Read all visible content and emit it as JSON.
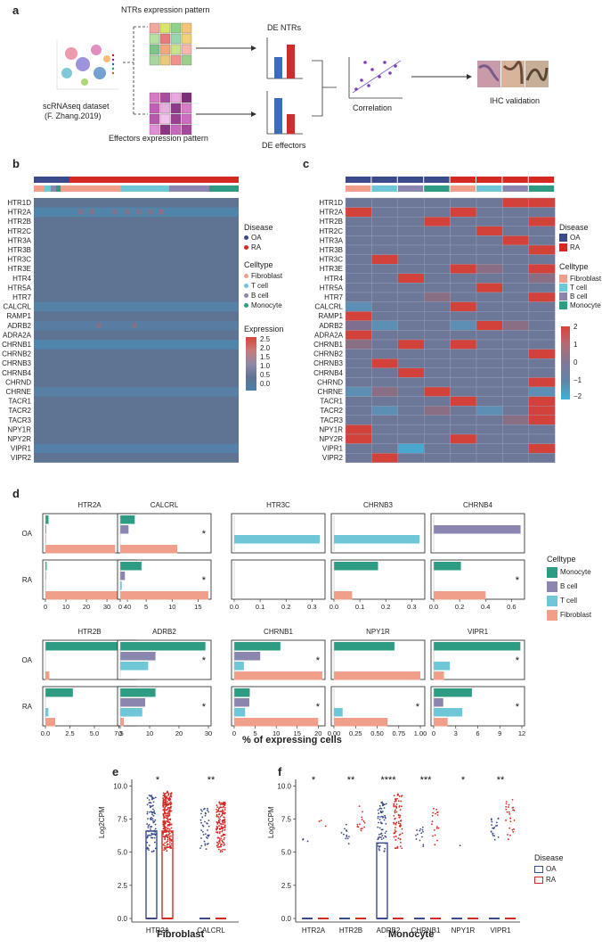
{
  "panel_a": {
    "label": "a",
    "dataset_label_1": "scRNAseq dataset",
    "dataset_label_2": "(F. Zhang.2019)",
    "ntr_pattern": "NTRs expression pattern",
    "eff_pattern": "Effectors expression pattern",
    "de_ntrs": "DE NTRs",
    "de_effectors": "DE effectors",
    "correlation": "Correlation",
    "ihc": "IHC validation"
  },
  "panel_b": {
    "label": "b",
    "genes": [
      "HTR1D",
      "HTR2A",
      "HTR2B",
      "HTR2C",
      "HTR3A",
      "HTR3B",
      "HTR3C",
      "HTR3E",
      "HTR4",
      "HTR5A",
      "HTR7",
      "CALCRL",
      "RAMP1",
      "ADRB2",
      "ADRA2A",
      "CHRNB1",
      "CHRNB2",
      "CHRNB3",
      "CHRNB4",
      "CHRND",
      "CHRNE",
      "TACR1",
      "TACR2",
      "TACR3",
      "NPY1R",
      "NPY2R",
      "VIPR1",
      "VIPR2"
    ],
    "legend": {
      "disease_title": "Disease",
      "disease": [
        "OA",
        "RA"
      ],
      "celltype_title": "Celltype",
      "celltypes": [
        "Fibroblast",
        "T cell",
        "B cell",
        "Monocyte"
      ],
      "expression_title": "Expression",
      "expression_ticks": [
        "2.5",
        "2.0",
        "1.5",
        "1.0",
        "0.5",
        "0.0"
      ]
    }
  },
  "panel_c": {
    "label": "c",
    "legend": {
      "disease_title": "Disease",
      "disease": [
        "OA",
        "RA"
      ],
      "celltype_title": "Celltype",
      "celltypes": [
        "Fibroblast",
        "T cell",
        "B cell",
        "Monocyte"
      ],
      "scale_ticks": [
        "2",
        "1",
        "0",
        "−1",
        "−2"
      ]
    }
  },
  "panel_d": {
    "label": "d",
    "xlabel": "% of expressing cells",
    "legend_title": "Celltype",
    "legend_items": [
      "Monocyte",
      "B cell",
      "T cell",
      "Fibroblast"
    ],
    "row_labels": [
      "OA",
      "RA"
    ]
  },
  "panel_e": {
    "label": "e",
    "ylabel": "Log2CPM",
    "xlabel": "Fibroblast",
    "genes": [
      "HTR2A",
      "CALCRL"
    ],
    "sig": [
      "*",
      "**"
    ],
    "yticks": [
      "10.0",
      "7.5",
      "5.0",
      "2.5",
      "0.0"
    ]
  },
  "panel_f": {
    "label": "f",
    "ylabel": "Log2CPM",
    "xlabel": "Monocyte",
    "genes": [
      "HTR2A",
      "HTR2B",
      "ADRB2",
      "CHRNB1",
      "NPY1R",
      "VIPR1"
    ],
    "sig": [
      "*",
      "**",
      "****",
      "***",
      "*",
      "**"
    ],
    "yticks": [
      "10.0",
      "7.5",
      "5.0",
      "2.5",
      "0.0"
    ],
    "legend_title": "Disease",
    "legend_items": [
      "OA",
      "RA"
    ]
  },
  "colors": {
    "oa": "#3b4a8a",
    "ra": "#d42a23",
    "fibroblast": "#f0a08a",
    "tcell": "#6ec6d6",
    "bcell": "#8a86b0",
    "monocyte": "#2e9c82",
    "heat_base": "#5f7393"
  },
  "chart_data": [
    {
      "id": "d-top",
      "type": "bar",
      "orientation": "horizontal",
      "rows": [
        "OA",
        "RA"
      ],
      "series_order": [
        "Monocyte",
        "B cell",
        "T cell",
        "Fibroblast"
      ],
      "xlabel": "% of expressing cells",
      "panels": [
        {
          "gene": "HTR2A",
          "xlim": [
            0,
            43
          ],
          "ticks": [
            "0",
            "10",
            "20",
            "30",
            "40"
          ],
          "tickvals": [
            0,
            10,
            20,
            30,
            40
          ],
          "OA": {
            "Monocyte": 1.5,
            "B cell": 0.4,
            "T cell": 0.3,
            "Fibroblast": 34
          },
          "OA_sig": "*",
          "RA": {
            "Monocyte": 0.6,
            "B cell": 0.3,
            "T cell": 0.2,
            "Fibroblast": 43
          },
          "RA_sig": "*"
        },
        {
          "gene": "CALCRL",
          "xlim": [
            0,
            17
          ],
          "ticks": [
            "0",
            "5",
            "10",
            "15"
          ],
          "tickvals": [
            0,
            5,
            10,
            15
          ],
          "OA": {
            "Monocyte": 2.8,
            "B cell": 1.6,
            "T cell": 0,
            "Fibroblast": 11
          },
          "OA_sig": "*",
          "RA": {
            "Monocyte": 4.1,
            "B cell": 0.9,
            "T cell": 0.3,
            "Fibroblast": 17
          },
          "RA_sig": "*"
        },
        {
          "gene": "HTR3C",
          "xlim": [
            0,
            0.34
          ],
          "ticks": [
            "0.0",
            "0.1",
            "0.2",
            "0.3"
          ],
          "tickvals": [
            0,
            0.1,
            0.2,
            0.3
          ],
          "OA": {
            "Monocyte": 0,
            "B cell": 0,
            "T cell": 0.33,
            "Fibroblast": 0
          },
          "OA_sig": "",
          "RA": {
            "Monocyte": 0,
            "B cell": 0,
            "T cell": 0,
            "Fibroblast": 0
          },
          "RA_sig": ""
        },
        {
          "gene": "CHRNB3",
          "xlim": [
            0,
            0.34
          ],
          "ticks": [
            "0.0",
            "0.1",
            "0.2",
            "0.3"
          ],
          "tickvals": [
            0,
            0.1,
            0.2,
            0.3
          ],
          "OA": {
            "Monocyte": 0,
            "B cell": 0,
            "T cell": 0.33,
            "Fibroblast": 0
          },
          "OA_sig": "",
          "RA": {
            "Monocyte": 0.17,
            "B cell": 0,
            "T cell": 0,
            "Fibroblast": 0.07
          },
          "RA_sig": ""
        },
        {
          "gene": "CHRNB4",
          "xlim": [
            0,
            0.68
          ],
          "ticks": [
            "0.0",
            "0.2",
            "0.4",
            "0.6"
          ],
          "tickvals": [
            0,
            0.2,
            0.4,
            0.6
          ],
          "OA": {
            "Monocyte": 0,
            "B cell": 0.67,
            "T cell": 0,
            "Fibroblast": 0
          },
          "OA_sig": "",
          "RA": {
            "Monocyte": 0.21,
            "B cell": 0,
            "T cell": 0,
            "Fibroblast": 0.4
          },
          "RA_sig": "*"
        }
      ]
    },
    {
      "id": "d-bottom",
      "type": "bar",
      "orientation": "horizontal",
      "rows": [
        "OA",
        "RA"
      ],
      "series_order": [
        "Monocyte",
        "B cell",
        "T cell",
        "Fibroblast"
      ],
      "xlabel": "% of expressing cells",
      "panels": [
        {
          "gene": "HTR2B",
          "xlim": [
            0,
            9
          ],
          "ticks": [
            "0.0",
            "2.5",
            "5.0",
            "7.5"
          ],
          "tickvals": [
            0,
            2.5,
            5,
            7.5
          ],
          "OA": {
            "Monocyte": 8.6,
            "B cell": 0,
            "T cell": 0,
            "Fibroblast": 0.4
          },
          "OA_sig": "*",
          "RA": {
            "Monocyte": 2.8,
            "B cell": 0,
            "T cell": 0.3,
            "Fibroblast": 1.0
          },
          "RA_sig": "*"
        },
        {
          "gene": "ADRB2",
          "xlim": [
            0,
            30
          ],
          "ticks": [
            "0",
            "10",
            "20",
            "30"
          ],
          "tickvals": [
            0,
            10,
            20,
            30
          ],
          "OA": {
            "Monocyte": 29,
            "B cell": 12,
            "T cell": 9.5,
            "Fibroblast": 0
          },
          "OA_sig": "*",
          "RA": {
            "Monocyte": 12,
            "B cell": 8.5,
            "T cell": 7.5,
            "Fibroblast": 1.2
          },
          "RA_sig": "*"
        },
        {
          "gene": "CHRNB1",
          "xlim": [
            0,
            21
          ],
          "ticks": [
            "0",
            "5",
            "10",
            "15",
            "20"
          ],
          "tickvals": [
            0,
            5,
            10,
            15,
            20
          ],
          "OA": {
            "Monocyte": 11,
            "B cell": 6.2,
            "T cell": 2.3,
            "Fibroblast": 21
          },
          "OA_sig": "*",
          "RA": {
            "Monocyte": 3.7,
            "B cell": 3.6,
            "T cell": 2.6,
            "Fibroblast": 20
          },
          "RA_sig": "*"
        },
        {
          "gene": "NPY1R",
          "xlim": [
            0,
            1.02
          ],
          "ticks": [
            "0.00",
            "0.25",
            "0.50",
            "0.75",
            "1.00"
          ],
          "tickvals": [
            0,
            0.25,
            0.5,
            0.75,
            1.0
          ],
          "OA": {
            "Monocyte": 0.7,
            "B cell": 0,
            "T cell": 0,
            "Fibroblast": 1.0
          },
          "OA_sig": "",
          "RA": {
            "Monocyte": 0,
            "B cell": 0,
            "T cell": 0.1,
            "Fibroblast": 0.62
          },
          "RA_sig": "*"
        },
        {
          "gene": "VIPR1",
          "xlim": [
            0,
            12
          ],
          "ticks": [
            "0",
            "3",
            "6",
            "9",
            "12"
          ],
          "tickvals": [
            0,
            3,
            6,
            9,
            12
          ],
          "OA": {
            "Monocyte": 11.8,
            "B cell": 0,
            "T cell": 2.2,
            "Fibroblast": 1.4
          },
          "OA_sig": "*",
          "RA": {
            "Monocyte": 5.2,
            "B cell": 1.3,
            "T cell": 3.9,
            "Fibroblast": 1.9
          },
          "RA_sig": "*"
        }
      ]
    },
    {
      "id": "e",
      "type": "scatter",
      "subtype": "box-jitter",
      "title": "Fibroblast",
      "ylabel": "Log2CPM",
      "ylim": [
        0,
        10.5
      ],
      "categories": [
        "HTR2A",
        "CALCRL"
      ],
      "series": [
        {
          "name": "OA",
          "box_q3": [
            6.6,
            0
          ],
          "median": [
            0,
            0
          ],
          "points_range": [
            [
              5,
              9.3
            ],
            [
              5,
              8.3
            ]
          ]
        },
        {
          "name": "RA",
          "box_q3": [
            6.6,
            0
          ],
          "median": [
            0,
            0
          ],
          "points_range": [
            [
              5,
              9.6
            ],
            [
              5,
              8.8
            ]
          ]
        }
      ],
      "significance": [
        "*",
        "**"
      ]
    },
    {
      "id": "f",
      "type": "scatter",
      "subtype": "box-jitter",
      "title": "Monocyte",
      "ylabel": "Log2CPM",
      "ylim": [
        0,
        10.5
      ],
      "categories": [
        "HTR2A",
        "HTR2B",
        "ADRB2",
        "CHRNB1",
        "NPY1R",
        "VIPR1"
      ],
      "series": [
        {
          "name": "OA",
          "box_q3": [
            0,
            0,
            5.7,
            0,
            0,
            0
          ],
          "median": [
            0,
            0,
            0,
            0,
            0,
            0
          ],
          "points_range": [
            [
              5.8,
              8.3
            ],
            [
              5.5,
              7.6
            ],
            [
              5,
              8.8
            ],
            [
              5.2,
              7
            ],
            [
              5.5,
              5.5
            ],
            [
              5.8,
              7.6
            ]
          ]
        },
        {
          "name": "RA",
          "box_q3": [
            0,
            0,
            0,
            0,
            0,
            0
          ],
          "median": [
            0,
            0,
            0,
            0,
            0,
            0
          ],
          "points_range": [
            [
              6,
              7.4
            ],
            [
              6,
              8.5
            ],
            [
              5,
              9.4
            ],
            [
              5.5,
              8.4
            ],
            [
              0,
              0
            ],
            [
              5.8,
              9.3
            ]
          ]
        }
      ],
      "significance": [
        "*",
        "**",
        "****",
        "***",
        "*",
        "**"
      ]
    }
  ]
}
